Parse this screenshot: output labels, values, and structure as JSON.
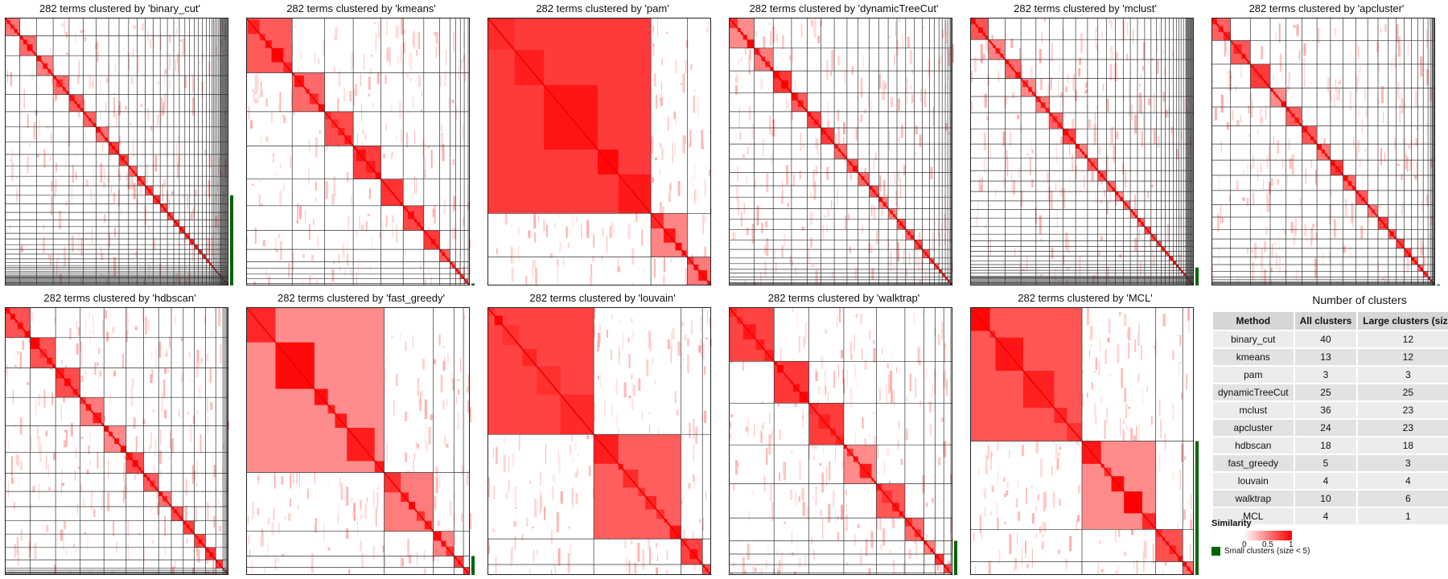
{
  "chart_data": [
    {
      "type": "heatmap",
      "title": "282 terms clustered by 'binary_cut'",
      "method": "binary_cut",
      "n_terms": 282,
      "all_clusters": 40,
      "large_clusters": 12
    },
    {
      "type": "heatmap",
      "title": "282 terms clustered by 'kmeans'",
      "method": "kmeans",
      "n_terms": 282,
      "all_clusters": 13,
      "large_clusters": 12
    },
    {
      "type": "heatmap",
      "title": "282 terms clustered by 'pam'",
      "method": "pam",
      "n_terms": 282,
      "all_clusters": 3,
      "large_clusters": 3
    },
    {
      "type": "heatmap",
      "title": "282 terms clustered by 'dynamicTreeCut'",
      "method": "dynamicTreeCut",
      "n_terms": 282,
      "all_clusters": 25,
      "large_clusters": 25
    },
    {
      "type": "heatmap",
      "title": "282 terms clustered by 'mclust'",
      "method": "mclust",
      "n_terms": 282,
      "all_clusters": 36,
      "large_clusters": 23
    },
    {
      "type": "heatmap",
      "title": "282 terms clustered by 'apcluster'",
      "method": "apcluster",
      "n_terms": 282,
      "all_clusters": 24,
      "large_clusters": 23
    },
    {
      "type": "heatmap",
      "title": "282 terms clustered by 'hdbscan'",
      "method": "hdbscan",
      "n_terms": 282,
      "all_clusters": 18,
      "large_clusters": 18
    },
    {
      "type": "heatmap",
      "title": "282 terms clustered by 'fast_greedy'",
      "method": "fast_greedy",
      "n_terms": 282,
      "all_clusters": 5,
      "large_clusters": 3
    },
    {
      "type": "heatmap",
      "title": "282 terms clustered by 'louvain'",
      "method": "louvain",
      "n_terms": 282,
      "all_clusters": 4,
      "large_clusters": 4
    },
    {
      "type": "heatmap",
      "title": "282 terms clustered by 'walktrap'",
      "method": "walktrap",
      "n_terms": 282,
      "all_clusters": 10,
      "large_clusters": 6
    },
    {
      "type": "heatmap",
      "title": "282 terms clustered by 'MCL'",
      "method": "MCL",
      "n_terms": 282,
      "all_clusters": 4,
      "large_clusters": 1
    },
    {
      "type": "table",
      "title": "Number of clusters",
      "columns": [
        "Method",
        "All clusters",
        "Large clusters (size"
      ],
      "rows": [
        [
          "binary_cut",
          "40",
          "12"
        ],
        [
          "kmeans",
          "13",
          "12"
        ],
        [
          "pam",
          "3",
          "3"
        ],
        [
          "dynamicTreeCut",
          "25",
          "25"
        ],
        [
          "mclust",
          "36",
          "23"
        ],
        [
          "apcluster",
          "24",
          "23"
        ],
        [
          "hdbscan",
          "18",
          "18"
        ],
        [
          "fast_greedy",
          "5",
          "3"
        ],
        [
          "louvain",
          "4",
          "4"
        ],
        [
          "walktrap",
          "10",
          "6"
        ],
        [
          "MCL",
          "4",
          "1"
        ]
      ]
    }
  ],
  "legend": {
    "similarity_title": "Similarity",
    "ticks": [
      "0",
      "0.5",
      "1"
    ],
    "color_low": "#ffffff",
    "color_high": "#ff0000",
    "small_clusters_label": "Small clusters (size < 5)",
    "small_cluster_color": "#006400"
  }
}
